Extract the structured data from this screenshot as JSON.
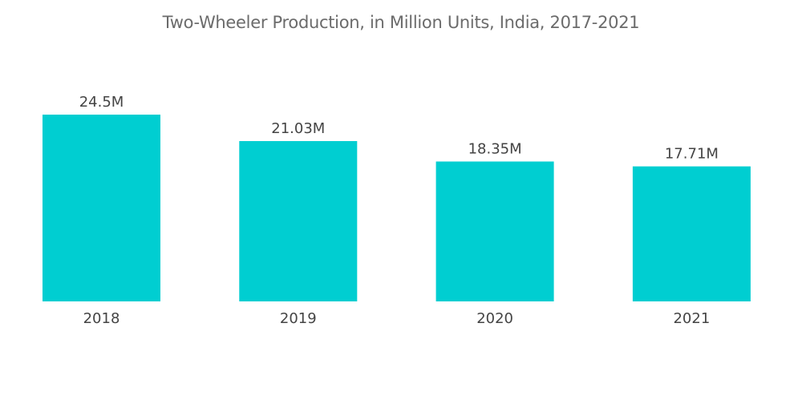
{
  "chart_data": {
    "type": "bar",
    "title": "Two-Wheeler Production, in Million Units, India, 2017-2021",
    "categories": [
      "2018",
      "2019",
      "2020",
      "2021"
    ],
    "values": [
      24.5,
      21.03,
      18.35,
      17.71
    ],
    "data_labels": [
      "24.5M",
      "21.03M",
      "18.35M",
      "17.71M"
    ],
    "xlabel": "",
    "ylabel": "",
    "ylim": [
      0,
      30
    ],
    "grid": false,
    "y_axis_visible": false,
    "bar_color": "#00CED1"
  }
}
